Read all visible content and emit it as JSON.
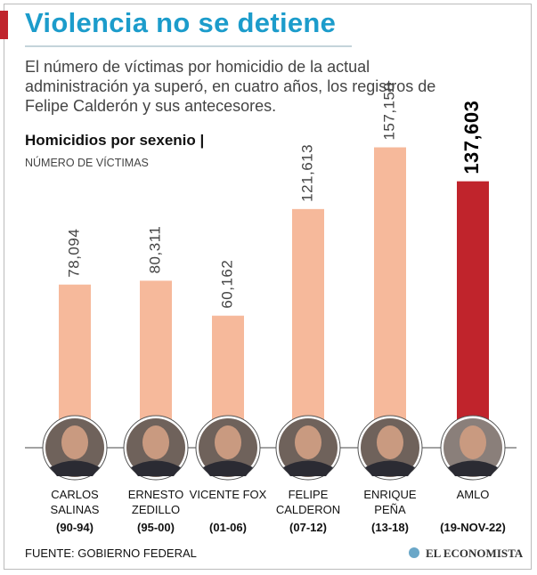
{
  "chart_data": {
    "type": "bar",
    "title": "Violencia no se detiene",
    "subtitle": "El número de víctimas por homicidio de la actual administración ya superó, en cuatro años, los registros de Felipe Calderón y sus antecesores.",
    "chart_title": "Homicidios por sexenio |",
    "unit_label": "NÚMERO DE VÍCTIMAS",
    "categories": [
      "CARLOS SALINAS",
      "ERNESTO ZEDILLO",
      "VICENTE FOX",
      "FELIPE CALDERON",
      "ENRIQUE PEÑA",
      "AMLO"
    ],
    "periods": [
      "(90-94)",
      "(95-00)",
      "(01-06)",
      "(07-12)",
      "(13-18)",
      "(19-NOV-22)"
    ],
    "values": [
      78094,
      80311,
      60162,
      121613,
      157158,
      137603
    ],
    "value_labels": [
      "78,094",
      "80,311",
      "60,162",
      "121,613",
      "157,158",
      "137,603"
    ],
    "colors": [
      "#f6b99b",
      "#f6b99b",
      "#f6b99b",
      "#f6b99b",
      "#f6b99b",
      "#c0242c"
    ],
    "ylim": [
      0,
      160000
    ],
    "source": "FUENTE: GOBIERNO FEDERAL",
    "brand": "EL ECONOMISTA"
  }
}
